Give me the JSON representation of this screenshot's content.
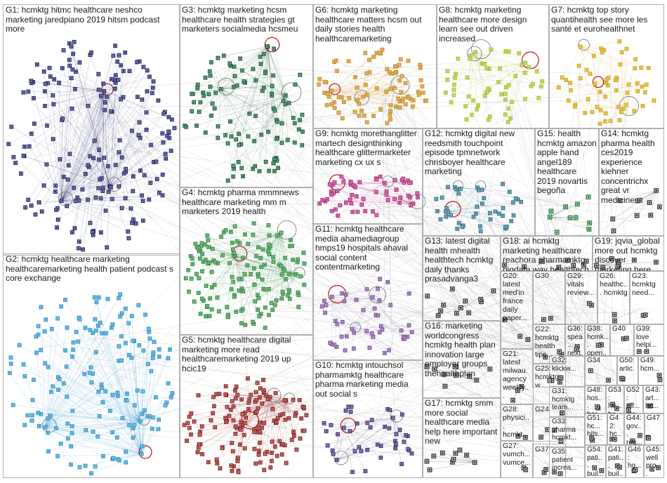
{
  "groups": [
    {
      "id": "G1",
      "text": "G1: hcmktg hitmc healthcare neshco marketing jaredpiano 2019 hitsm podcast more",
      "color": "#1f2366",
      "n": 200
    },
    {
      "id": "G2",
      "text": "G2: hcmktg healthcare marketing healthcaremarketing health patient podcast s core exchange",
      "color": "#2c93c9",
      "n": 170
    },
    {
      "id": "G3",
      "text": "G3: hcmktg marketing hcsm healthcare health strategies gt marketers socialmedia hcsmeu",
      "color": "#145c36",
      "n": 110
    },
    {
      "id": "G4",
      "text": "G4: hcmktg pharma mmmnews healthcare marketing mm m marketers 2019 health",
      "color": "#2e8b3e",
      "n": 160
    },
    {
      "id": "G5",
      "text": "G5: hcmktg healthcare digital marketing more read healthcaremarketing 2019 up hcic19",
      "color": "#8b1a1a",
      "n": 150
    },
    {
      "id": "G6",
      "text": "G6: hcmktg marketing healthcare matters hcsm out daily stories health healthcaremarketing",
      "color": "#c78a1e",
      "n": 90
    },
    {
      "id": "G7",
      "text": "G7: hcmktg top story quantihealth see more les santé et eurohealthnet",
      "color": "#d2a515",
      "n": 60
    },
    {
      "id": "G8",
      "text": "G8: hcmktg marketing healthcare more design learn see out driven increased",
      "color": "#a8bf2a",
      "n": 60
    },
    {
      "id": "G9",
      "text": "G9: hcmktg morethanglitter martech designthinking healthcare glittermarketer marketing cx ux s",
      "color": "#b0297a",
      "n": 60
    },
    {
      "id": "G10",
      "text": "G10: hcmktg intouchsol pharmamktg healthcare pharma marketing media out social s",
      "color": "#3d2a6e",
      "n": 45
    },
    {
      "id": "G11",
      "text": "G11: hcmktg healthcare media ahamediagroup hmps19 hospitals ahaval social content contentmarketing",
      "color": "#7b4fa0",
      "n": 50
    },
    {
      "id": "G12",
      "text": "G12: hcmktg digital new reedsmith touchpoint episode tpmnetwork chrisboyer healthcare marketing",
      "color": "#2f6e8c",
      "n": 45
    },
    {
      "id": "G13",
      "text": "G13: latest digital health mhealth healthtech hcmktg daily thanks prasadvanga3",
      "color": "#333333",
      "n": 12
    },
    {
      "id": "G14",
      "text": "G14: hcmktg pharma health ces2019 experience kiehner concentrichx great vr medicine",
      "color": "#333333",
      "n": 10
    },
    {
      "id": "G15",
      "text": "G15: health hcmktg amazon apple hand angel189 healthcare 2019 novartis begoña",
      "color": "#1a7a3a",
      "n": 10
    },
    {
      "id": "G16",
      "text": "G16: marketing worldcongress hcmktg health plan innovation large employer groups thehealthplan",
      "color": "#333333",
      "n": 10
    },
    {
      "id": "G17",
      "text": "G17: hcmktg smm more social healthcare media help here important new",
      "color": "#333333",
      "n": 10
    },
    {
      "id": "G18",
      "text": "G18: ai hcmktg marketing healthcare reachora pharmamktg bigdata way healthtech hstrends",
      "color": "#333333",
      "n": 8
    },
    {
      "id": "G19",
      "text": "G19: jqvia_global more out hcmktg discover marketing here find strategy...",
      "color": "#333333",
      "n": 8
    },
    {
      "id": "G20",
      "text": "G20: latest med'in france daily paper...",
      "color": "#333333",
      "n": 3
    },
    {
      "id": "G21",
      "text": "G21: latest milwau agency weekly...",
      "color": "#333333",
      "n": 3
    },
    {
      "id": "G22",
      "text": "G22: hcmktg health tips...",
      "color": "#333333",
      "n": 3
    },
    {
      "id": "G23",
      "text": "G23: hcmktg need...",
      "color": "#333333",
      "n": 2
    },
    {
      "id": "G24",
      "text": "G24",
      "color": "#333333",
      "n": 3
    },
    {
      "id": "G25",
      "text": "G25: hcmktg w...",
      "color": "#333333",
      "n": 2
    },
    {
      "id": "G26",
      "text": "G26: healthc... hcmktg",
      "color": "#333333",
      "n": 2
    },
    {
      "id": "G27",
      "text": "G27: vumch... vumce...",
      "color": "#333333",
      "n": 2
    },
    {
      "id": "G28",
      "text": "G28: physici... hcmkt...",
      "color": "#333333",
      "n": 2
    },
    {
      "id": "G29",
      "text": "G29: vitals review...",
      "color": "#333333",
      "n": 2
    },
    {
      "id": "G30",
      "text": "G30",
      "color": "#333333",
      "n": 2
    },
    {
      "id": "G31",
      "text": "G31: hcmktg team...",
      "color": "#333333",
      "n": 2
    },
    {
      "id": "G32",
      "text": "G32: klickw...",
      "color": "#333333",
      "n": 2
    },
    {
      "id": "G33",
      "text": "G33: pharma hcmkt...",
      "color": "#333333",
      "n": 2
    },
    {
      "id": "G34",
      "text": "G34",
      "color": "#333333",
      "n": 2
    },
    {
      "id": "G35",
      "text": "G35: patient increa...",
      "color": "#333333",
      "n": 2
    },
    {
      "id": "G36",
      "text": "G36: spea... next...",
      "color": "#333333",
      "n": 2
    },
    {
      "id": "G37",
      "text": "G37",
      "color": "#333333",
      "n": 2
    },
    {
      "id": "G38",
      "text": "G38: hcmk... open...",
      "color": "#333333",
      "n": 2
    },
    {
      "id": "G39",
      "text": "G39: love helpi...",
      "color": "#333333",
      "n": 2
    },
    {
      "id": "G40",
      "text": "G40",
      "color": "#333333",
      "n": 2
    },
    {
      "id": "G41",
      "text": "G41: pati... buil...",
      "color": "#333333",
      "n": 2
    },
    {
      "id": "G42",
      "text": "G42: hc... nyti...",
      "color": "#333333",
      "n": 2
    },
    {
      "id": "G43",
      "text": "G43: art... hc...",
      "color": "#333333",
      "n": 2
    },
    {
      "id": "G44",
      "text": "G44: gov... reg...",
      "color": "#333333",
      "n": 2
    },
    {
      "id": "G45",
      "text": "G45: well pro...",
      "color": "#333333",
      "n": 2
    },
    {
      "id": "G46",
      "text": "G46: hg...",
      "color": "#333333",
      "n": 2
    },
    {
      "id": "G47",
      "text": "G47",
      "color": "#333333",
      "n": 2
    },
    {
      "id": "G48",
      "text": "G48: hos... har...",
      "color": "#333333",
      "n": 2
    },
    {
      "id": "G49",
      "text": "G49: hcm...",
      "color": "#333333",
      "n": 2
    },
    {
      "id": "G50",
      "text": "G50: artic...",
      "color": "#333333",
      "n": 2
    },
    {
      "id": "G51",
      "text": "G51: hc... hits...",
      "color": "#333333",
      "n": 2
    },
    {
      "id": "G52",
      "text": "G52: eff... sto...",
      "color": "#333333",
      "n": 2
    },
    {
      "id": "G53",
      "text": "G53: he... he...",
      "color": "#333333",
      "n": 2
    },
    {
      "id": "G54",
      "text": "G54: pati... buil...",
      "color": "#333333",
      "n": 2
    }
  ]
}
